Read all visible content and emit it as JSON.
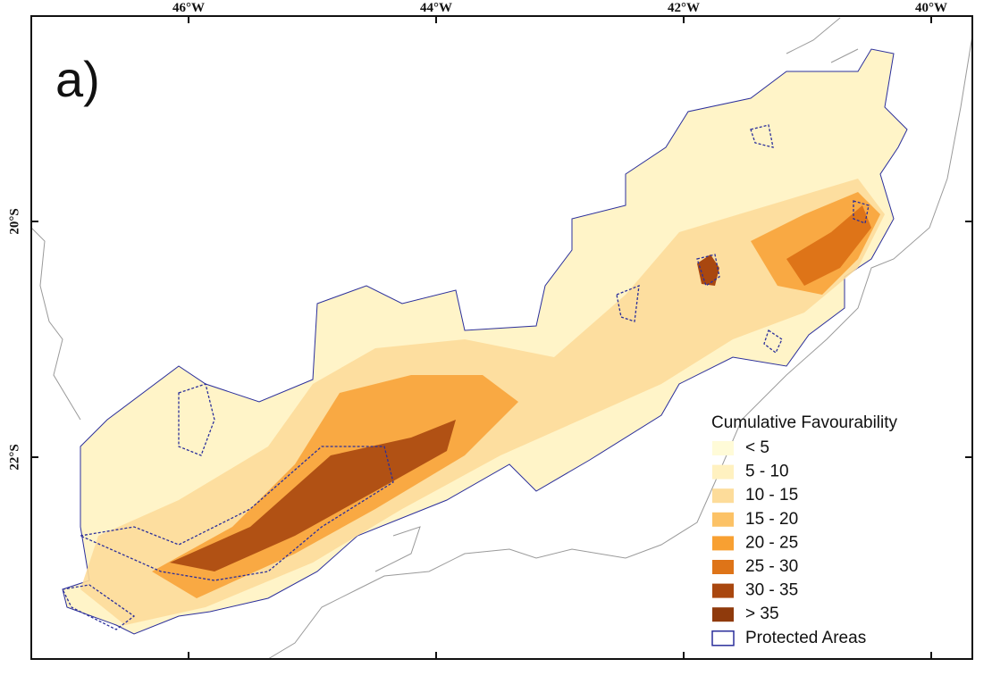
{
  "panel_label": "a)",
  "longitude_labels": [
    "46°W",
    "44°W",
    "42°W",
    "40°W"
  ],
  "latitude_labels": [
    "20°S",
    "22°S"
  ],
  "legend": {
    "title": "Cumulative Favourability",
    "items": [
      {
        "label": "< 5",
        "color": "#fffbd8"
      },
      {
        "label": "5 - 10",
        "color": "#fff1c0"
      },
      {
        "label": "10 - 15",
        "color": "#fddc9a"
      },
      {
        "label": "15 - 20",
        "color": "#fcc266"
      },
      {
        "label": "20 - 25",
        "color": "#f8a032"
      },
      {
        "label": "25 - 30",
        "color": "#de7418"
      },
      {
        "label": "30 - 35",
        "color": "#a9470f"
      },
      {
        "label": "> 35",
        "color": "#8f3a0c"
      }
    ],
    "protected_areas": {
      "label": "Protected Areas",
      "color": "#2b2f9b"
    }
  }
}
